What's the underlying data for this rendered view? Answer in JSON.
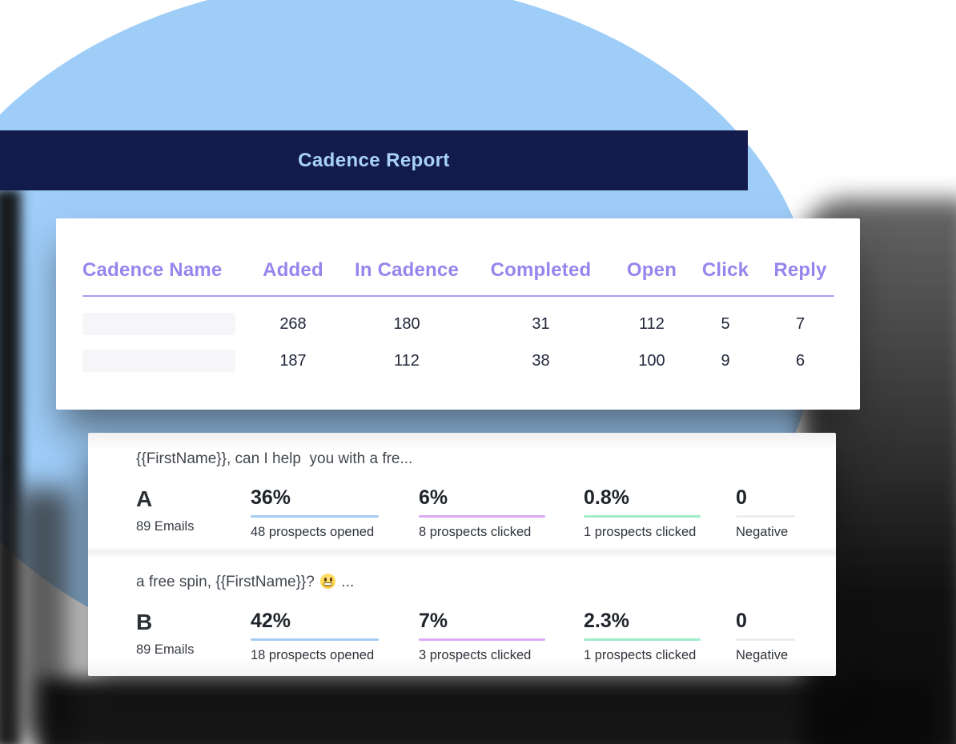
{
  "banner": {
    "title": "Cadence Report"
  },
  "report_table": {
    "columns": [
      "Cadence Name",
      "Added",
      "In Cadence",
      "Completed",
      "Open",
      "Click",
      "Reply"
    ],
    "rows": [
      {
        "values": [
          "268",
          "180",
          "31",
          "112",
          "5",
          "7"
        ]
      },
      {
        "values": [
          "187",
          "112",
          "38",
          "100",
          "9",
          "6"
        ]
      }
    ]
  },
  "ab_test": {
    "variants": [
      {
        "subject": "{{FirstName}}, can I help  you with a fre...",
        "letter": "A",
        "emails": "89 Emails",
        "stats": [
          {
            "value": "36%",
            "label": "48 prospects opened",
            "underline_color": "#a5cbf2"
          },
          {
            "value": "6%",
            "label": "8 prospects clicked",
            "underline_color": "#dcaaf6"
          },
          {
            "value": "0.8%",
            "label": "1 prospects clicked",
            "underline_color": "#9fedc8"
          },
          {
            "value": "0",
            "label": "Negative",
            "underline_color": "#ededed"
          }
        ]
      },
      {
        "subject_prefix": "a free spin, {{FirstName}}? ",
        "subject_emoji": "grinning-face-emoji",
        "subject_suffix": " ...",
        "letter": "B",
        "emails": "89 Emails",
        "stats": [
          {
            "value": "42%",
            "label": "18 prospects opened",
            "underline_color": "#a5cbf2"
          },
          {
            "value": "7%",
            "label": "3 prospects clicked",
            "underline_color": "#dcaaf6"
          },
          {
            "value": "2.3%",
            "label": "1 prospects clicked",
            "underline_color": "#9fedc8"
          },
          {
            "value": "0",
            "label": "Negative",
            "underline_color": "#ededed"
          }
        ]
      }
    ]
  },
  "colors": {
    "blob_blue": "#9ecdf8",
    "banner_navy": "#131b4d",
    "banner_text": "#a8d2f7",
    "table_header_purple": "#9486ec",
    "table_header_underline": "#a99cf2",
    "table_number_dark": "#21263a",
    "placeholder_gray": "#f6f6f8"
  }
}
